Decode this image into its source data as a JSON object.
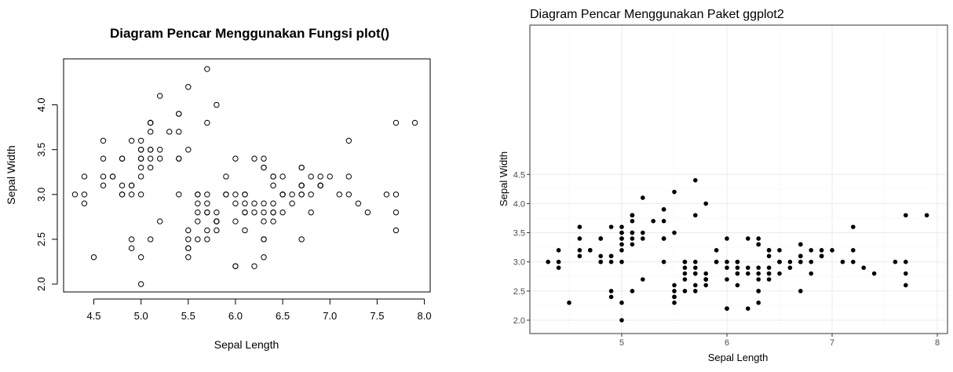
{
  "chart_data": [
    {
      "type": "scatter",
      "title": "Diagram Pencar Menggunakan Fungsi plot()",
      "xlabel": "Sepal Length",
      "ylabel": "Sepal Width",
      "xlim": [
        4.3,
        7.9
      ],
      "ylim": [
        2.0,
        4.4
      ],
      "xticks": [
        "4.5",
        "5.0",
        "5.5",
        "6.0",
        "6.5",
        "7.0",
        "7.5",
        "8.0"
      ],
      "yticks": [
        "2.0",
        "2.5",
        "3.0",
        "3.5",
        "4.0"
      ],
      "grid": false,
      "marker": "open-circle",
      "x": [
        5.1,
        4.9,
        4.7,
        4.6,
        5.0,
        5.4,
        4.6,
        5.0,
        4.4,
        4.9,
        5.4,
        4.8,
        4.8,
        4.3,
        5.8,
        5.7,
        5.4,
        5.1,
        5.7,
        5.1,
        5.4,
        5.1,
        4.6,
        5.1,
        4.8,
        5.0,
        5.0,
        5.2,
        5.2,
        4.7,
        4.8,
        5.4,
        5.2,
        5.5,
        4.9,
        5.0,
        5.5,
        4.9,
        4.4,
        5.1,
        5.0,
        4.5,
        4.4,
        5.0,
        5.1,
        4.8,
        5.1,
        4.6,
        5.3,
        5.0,
        7.0,
        6.4,
        6.9,
        5.5,
        6.5,
        5.7,
        6.3,
        4.9,
        6.6,
        5.2,
        5.0,
        5.9,
        6.0,
        6.1,
        5.6,
        6.7,
        5.6,
        5.8,
        6.2,
        5.6,
        5.9,
        6.1,
        6.3,
        6.1,
        6.4,
        6.6,
        6.8,
        6.7,
        6.0,
        5.7,
        5.5,
        5.5,
        5.8,
        6.0,
        5.4,
        6.0,
        6.7,
        6.3,
        5.6,
        5.5,
        5.5,
        6.1,
        5.8,
        5.0,
        5.6,
        5.7,
        5.7,
        6.2,
        5.1,
        5.7,
        6.3,
        5.8,
        7.1,
        6.3,
        6.5,
        7.6,
        4.9,
        7.3,
        6.7,
        7.2,
        6.5,
        6.4,
        6.8,
        5.7,
        5.8,
        6.4,
        6.5,
        7.7,
        7.7,
        6.0,
        6.9,
        5.6,
        7.7,
        6.3,
        6.7,
        7.2,
        6.2,
        6.1,
        6.4,
        7.2,
        7.4,
        7.9,
        6.4,
        6.3,
        6.1,
        7.7,
        6.3,
        6.4,
        6.0,
        6.9,
        6.7,
        6.9,
        5.8,
        6.8,
        6.7,
        6.7,
        6.3,
        6.5,
        6.2,
        5.9
      ],
      "y": [
        3.5,
        3.0,
        3.2,
        3.1,
        3.6,
        3.9,
        3.4,
        3.4,
        2.9,
        3.1,
        3.7,
        3.4,
        3.0,
        3.0,
        4.0,
        4.4,
        3.9,
        3.5,
        3.8,
        3.8,
        3.4,
        3.7,
        3.6,
        3.3,
        3.4,
        3.0,
        3.4,
        3.5,
        3.4,
        3.2,
        3.1,
        3.4,
        4.1,
        4.2,
        3.1,
        3.2,
        3.5,
        3.6,
        3.0,
        3.4,
        3.5,
        2.3,
        3.2,
        3.5,
        3.8,
        3.0,
        3.8,
        3.2,
        3.7,
        3.3,
        3.2,
        3.2,
        3.1,
        2.3,
        2.8,
        2.8,
        3.3,
        2.4,
        2.9,
        2.7,
        2.0,
        3.0,
        2.2,
        2.9,
        2.9,
        3.1,
        3.0,
        2.7,
        2.2,
        2.5,
        3.2,
        2.8,
        2.5,
        2.8,
        2.9,
        3.0,
        2.8,
        3.0,
        2.9,
        2.6,
        2.4,
        2.4,
        2.7,
        2.7,
        3.0,
        3.4,
        3.1,
        2.3,
        3.0,
        2.5,
        2.6,
        3.0,
        2.6,
        2.3,
        2.7,
        3.0,
        2.9,
        2.9,
        2.5,
        2.8,
        3.3,
        2.7,
        3.0,
        2.9,
        3.0,
        3.0,
        2.5,
        2.9,
        2.5,
        3.6,
        3.2,
        2.7,
        3.0,
        2.5,
        2.8,
        3.2,
        3.0,
        3.8,
        2.6,
        2.2,
        3.2,
        2.8,
        2.8,
        2.7,
        3.3,
        3.2,
        2.8,
        3.0,
        2.8,
        3.0,
        2.8,
        3.8,
        2.8,
        2.8,
        2.6,
        3.0,
        3.4,
        3.1,
        3.0,
        3.1,
        3.1,
        3.1,
        2.7,
        3.2,
        3.3,
        3.0,
        2.5,
        3.0,
        3.4,
        3.0
      ]
    },
    {
      "type": "scatter",
      "title": "Diagram Pencar Menggunakan Paket ggplot2",
      "xlabel": "Sepal Length",
      "ylabel": "Sepal Width",
      "xlim": [
        4.3,
        7.9
      ],
      "ylim": [
        2.0,
        4.4
      ],
      "xticks": [
        "5",
        "6",
        "7",
        "8"
      ],
      "yticks": [
        "2.0",
        "2.5",
        "3.0",
        "3.5",
        "4.0",
        "4.5"
      ],
      "grid": true,
      "marker": "filled-circle",
      "same_data_as": 0
    }
  ],
  "colors": {
    "point": "#000000",
    "grid_major": "#ebebeb",
    "grid_minor": "#f5f5f5",
    "frame": "#333333"
  }
}
